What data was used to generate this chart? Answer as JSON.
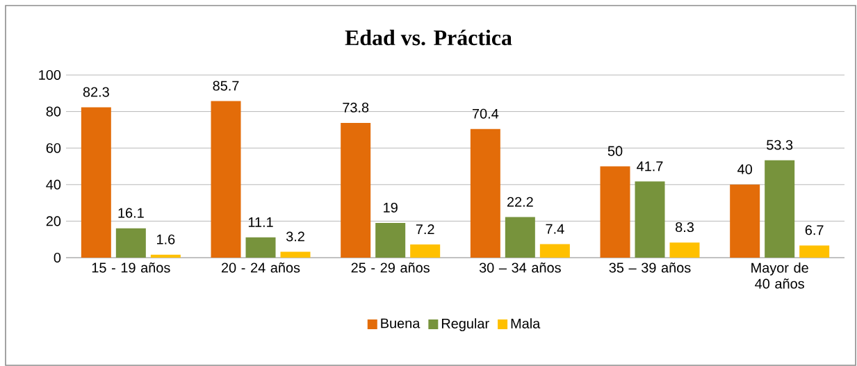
{
  "chart_data": {
    "type": "bar",
    "title": "Edad vs. Práctica",
    "categories": [
      "15 - 19 años",
      "20 - 24 años",
      "25 - 29 años",
      "30 – 34 años",
      "35 – 39 años",
      "Mayor de 40 años"
    ],
    "series": [
      {
        "name": "Buena",
        "color": "#e36c09",
        "values": [
          82.3,
          85.7,
          73.8,
          70.4,
          50,
          40
        ]
      },
      {
        "name": "Regular",
        "color": "#77933c",
        "values": [
          16.1,
          11.1,
          19,
          22.2,
          41.7,
          53.3
        ]
      },
      {
        "name": "Mala",
        "color": "#ffc000",
        "values": [
          1.6,
          3.2,
          7.2,
          7.4,
          8.3,
          6.7
        ]
      }
    ],
    "ylim": [
      0,
      100
    ],
    "yticks": [
      0,
      20,
      40,
      60,
      80,
      100
    ],
    "grid": "y",
    "legend": "bottom",
    "data_labels": true
  }
}
